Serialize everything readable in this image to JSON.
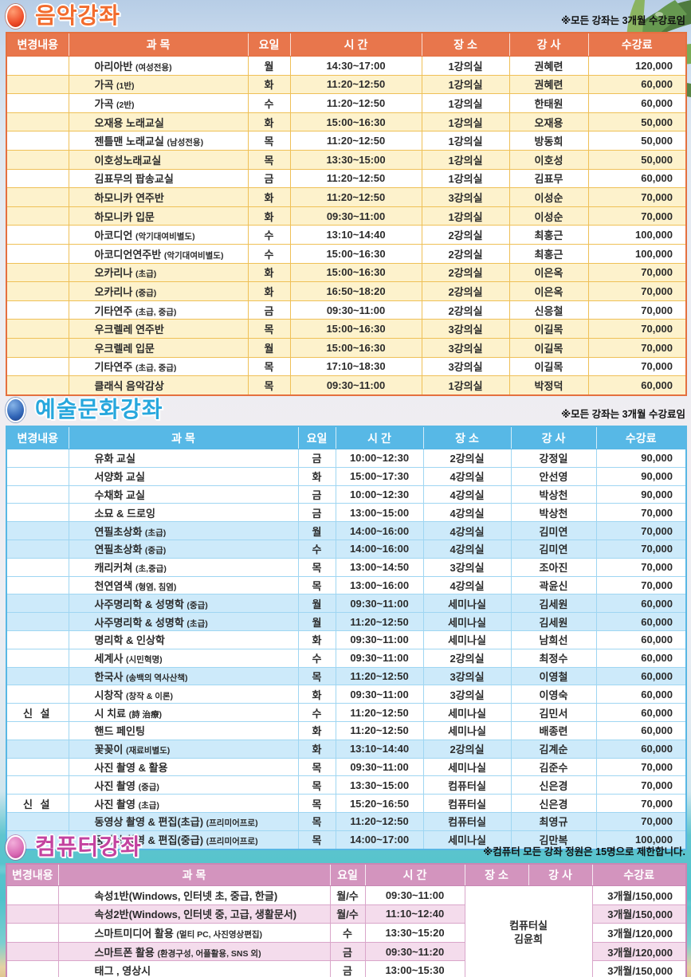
{
  "palette": {
    "music_accent": "#f26b2d",
    "music_header": "#e8764c",
    "music_stripe": "#fdf2cc",
    "music_grid": "#efc057",
    "art_accent": "#27a7dd",
    "art_header": "#57b8e6",
    "art_stripe": "#cdeafa",
    "comp_accent": "#c3429f",
    "comp_header": "#d394be",
    "comp_stripe": "#f4dcec",
    "new_label_red": "#e53126",
    "sea_teal": "#4fc2cb",
    "sand": "#e6d2a3"
  },
  "sections": [
    {
      "id": "music",
      "title": "음악강좌",
      "note": "※모든 강좌는 3개월 수강료임",
      "columns": [
        "변경내용",
        "과 목",
        "요일",
        "시 간",
        "장 소",
        "강 사",
        "수강료"
      ],
      "rows": [
        {
          "change": "",
          "subject": "아리아반",
          "subject_note": "(여성전용)",
          "day": "월",
          "time": "14:30~17:00",
          "place": "1강의실",
          "teacher": "권혜련",
          "fee": "120,000",
          "shade": false
        },
        {
          "change": "",
          "subject": "가곡",
          "subject_note": "(1반)",
          "day": "화",
          "time": "11:20~12:50",
          "place": "1강의실",
          "teacher": "권혜련",
          "fee": "60,000",
          "shade": true
        },
        {
          "change": "",
          "subject": "가곡",
          "subject_note": "(2반)",
          "day": "수",
          "time": "11:20~12:50",
          "place": "1강의실",
          "teacher": "한태원",
          "fee": "60,000",
          "shade": false
        },
        {
          "change": "",
          "subject": "오재용 노래교실",
          "subject_note": "",
          "day": "화",
          "time": "15:00~16:30",
          "place": "1강의실",
          "teacher": "오재용",
          "fee": "50,000",
          "shade": true
        },
        {
          "change": "",
          "subject": "젠틀맨 노래교실",
          "subject_note": "(남성전용)",
          "day": "목",
          "time": "11:20~12:50",
          "place": "1강의실",
          "teacher": "방동희",
          "fee": "50,000",
          "shade": false
        },
        {
          "change": "",
          "subject": "이호성노래교실",
          "subject_note": "",
          "day": "목",
          "time": "13:30~15:00",
          "place": "1강의실",
          "teacher": "이호성",
          "fee": "50,000",
          "shade": true
        },
        {
          "change": "",
          "subject": "김표무의 팝송교실",
          "subject_note": "",
          "day": "금",
          "time": "11:20~12:50",
          "place": "1강의실",
          "teacher": "김표무",
          "fee": "60,000",
          "shade": false
        },
        {
          "change": "",
          "subject": "하모니카 연주반",
          "subject_note": "",
          "day": "화",
          "time": "11:20~12:50",
          "place": "3강의실",
          "teacher": "이성순",
          "fee": "70,000",
          "shade": true
        },
        {
          "change": "",
          "subject": "하모니카 입문",
          "subject_note": "",
          "day": "화",
          "time": "09:30~11:00",
          "place": "1강의실",
          "teacher": "이성순",
          "fee": "70,000",
          "shade": true
        },
        {
          "change": "",
          "subject": "아코디언",
          "subject_note": "(악기대여비별도)",
          "day": "수",
          "time": "13:10~14:40",
          "place": "2강의실",
          "teacher": "최홍근",
          "fee": "100,000",
          "shade": false
        },
        {
          "change": "",
          "subject": "아코디언연주반",
          "subject_note": "(악기대여비별도)",
          "day": "수",
          "time": "15:00~16:30",
          "place": "2강의실",
          "teacher": "최홍근",
          "fee": "100,000",
          "shade": false
        },
        {
          "change": "",
          "subject": "오카리나",
          "subject_note": "(초급)",
          "day": "화",
          "time": "15:00~16:30",
          "place": "2강의실",
          "teacher": "이은옥",
          "fee": "70,000",
          "shade": true
        },
        {
          "change": "",
          "subject": "오카리나",
          "subject_note": "(중급)",
          "day": "화",
          "time": "16:50~18:20",
          "place": "2강의실",
          "teacher": "이은옥",
          "fee": "70,000",
          "shade": true
        },
        {
          "change": "",
          "subject": "기타연주",
          "subject_note": "(초급, 중급)",
          "day": "금",
          "time": "09:30~11:00",
          "place": "2강의실",
          "teacher": "신응철",
          "fee": "70,000",
          "shade": false
        },
        {
          "change": "",
          "subject": "우크렐레 연주반",
          "subject_note": "",
          "day": "목",
          "time": "15:00~16:30",
          "place": "3강의실",
          "teacher": "이길목",
          "fee": "70,000",
          "shade": true
        },
        {
          "change": "",
          "subject": "우크렐레 입문",
          "subject_note": "",
          "day": "월",
          "time": "15:00~16:30",
          "place": "3강의실",
          "teacher": "이길목",
          "fee": "70,000",
          "shade": true
        },
        {
          "change": "",
          "subject": "기타연주",
          "subject_note": "(초급, 중급)",
          "day": "목",
          "time": "17:10~18:30",
          "place": "3강의실",
          "teacher": "이길목",
          "fee": "70,000",
          "shade": false
        },
        {
          "change": "",
          "subject": "클래식 음악감상",
          "subject_note": "",
          "day": "목",
          "time": "09:30~11:00",
          "place": "1강의실",
          "teacher": "박정덕",
          "fee": "60,000",
          "shade": true
        }
      ]
    },
    {
      "id": "art",
      "title": "예술문화강좌",
      "note": "※모든 강좌는 3개월 수강료임",
      "columns": [
        "변경내용",
        "과 목",
        "요일",
        "시 간",
        "장 소",
        "강 사",
        "수강료"
      ],
      "rows": [
        {
          "change": "",
          "subject": "유화 교실",
          "subject_note": "",
          "day": "금",
          "time": "10:00~12:30",
          "place": "2강의실",
          "teacher": "강정일",
          "fee": "90,000",
          "shade": false
        },
        {
          "change": "",
          "subject": "서양화 교실",
          "subject_note": "",
          "day": "화",
          "time": "15:00~17:30",
          "place": "4강의실",
          "teacher": "안선영",
          "fee": "90,000",
          "shade": false
        },
        {
          "change": "",
          "subject": "수채화 교실",
          "subject_note": "",
          "day": "금",
          "time": "10:00~12:30",
          "place": "4강의실",
          "teacher": "박상천",
          "fee": "90,000",
          "shade": false
        },
        {
          "change": "",
          "subject": "소묘 & 드로잉",
          "subject_note": "",
          "day": "금",
          "time": "13:00~15:00",
          "place": "4강의실",
          "teacher": "박상천",
          "fee": "70,000",
          "shade": false
        },
        {
          "change": "",
          "subject": "연필초상화",
          "subject_note": "(초급)",
          "day": "월",
          "time": "14:00~16:00",
          "place": "4강의실",
          "teacher": "김미연",
          "fee": "70,000",
          "shade": true
        },
        {
          "change": "",
          "subject": "연필초상화",
          "subject_note": "(중급)",
          "day": "수",
          "time": "14:00~16:00",
          "place": "4강의실",
          "teacher": "김미연",
          "fee": "70,000",
          "shade": true
        },
        {
          "change": "",
          "subject": "캐리커쳐",
          "subject_note": "(초,중급)",
          "day": "목",
          "time": "13:00~14:50",
          "place": "3강의실",
          "teacher": "조아진",
          "fee": "70,000",
          "shade": false
        },
        {
          "change": "",
          "subject": "천연염색",
          "subject_note": "(형염, 침염)",
          "day": "목",
          "time": "13:00~16:00",
          "place": "4강의실",
          "teacher": "곽윤신",
          "fee": "70,000",
          "shade": false
        },
        {
          "change": "",
          "subject": "사주명리학 & 성명학",
          "subject_note": "(중급)",
          "day": "월",
          "time": "09:30~11:00",
          "place": "세미나실",
          "teacher": "김세원",
          "fee": "60,000",
          "shade": true
        },
        {
          "change": "",
          "subject": "사주명리학 & 성명학",
          "subject_note": "(초급)",
          "day": "월",
          "time": "11:20~12:50",
          "place": "세미나실",
          "teacher": "김세원",
          "fee": "60,000",
          "shade": true
        },
        {
          "change": "",
          "subject": "명리학 & 인상학",
          "subject_note": "",
          "day": "화",
          "time": "09:30~11:00",
          "place": "세미나실",
          "teacher": "남희선",
          "fee": "60,000",
          "shade": false
        },
        {
          "change": "",
          "subject": "세계사",
          "subject_note": "(시민혁명)",
          "day": "수",
          "time": "09:30~11:00",
          "place": "2강의실",
          "teacher": "최정수",
          "fee": "60,000",
          "shade": false
        },
        {
          "change": "",
          "subject": "한국사",
          "subject_note": "(송백의 역사산책)",
          "day": "목",
          "time": "11:20~12:50",
          "place": "3강의실",
          "teacher": "이영철",
          "fee": "60,000",
          "shade": true
        },
        {
          "change": "",
          "subject": "시창작",
          "subject_note": "(창작 & 이론)",
          "day": "화",
          "time": "09:30~11:00",
          "place": "3강의실",
          "teacher": "이영숙",
          "fee": "60,000",
          "shade": false
        },
        {
          "change": "신 설",
          "subject": "시 치료",
          "subject_note": "(詩 治療)",
          "day": "수",
          "time": "11:20~12:50",
          "place": "세미나실",
          "teacher": "김민서",
          "fee": "60,000",
          "shade": false
        },
        {
          "change": "",
          "subject": "핸드 페인팅",
          "subject_note": "",
          "day": "화",
          "time": "11:20~12:50",
          "place": "세미나실",
          "teacher": "배종련",
          "fee": "60,000",
          "shade": false
        },
        {
          "change": "",
          "subject": "꽃꽂이",
          "subject_note": "(재료비별도)",
          "day": "화",
          "time": "13:10~14:40",
          "place": "2강의실",
          "teacher": "김계순",
          "fee": "60,000",
          "shade": true
        },
        {
          "change": "",
          "subject": "사진 촬영 & 활용",
          "subject_note": "",
          "day": "목",
          "time": "09:30~11:00",
          "place": "세미나실",
          "teacher": "김준수",
          "fee": "70,000",
          "shade": false
        },
        {
          "change": "",
          "subject": "사진 촬영",
          "subject_note": "(중급)",
          "day": "목",
          "time": "13:30~15:00",
          "place": "컴퓨터실",
          "teacher": "신은경",
          "fee": "70,000",
          "shade": false
        },
        {
          "change": "신 설",
          "subject": "사진 촬영",
          "subject_note": "(초급)",
          "day": "목",
          "time": "15:20~16:50",
          "place": "컴퓨터실",
          "teacher": "신은경",
          "fee": "70,000",
          "shade": false
        },
        {
          "change": "",
          "subject": "동영상 촬영 & 편집(초급)",
          "subject_note": "(프리미어프로)",
          "day": "목",
          "time": "11:20~12:50",
          "place": "컴퓨터실",
          "teacher": "최영규",
          "fee": "70,000",
          "shade": true
        },
        {
          "change": "",
          "subject": "동영상 촬영 & 편집(중급)",
          "subject_note": "(프리미어프로)",
          "day": "목",
          "time": "14:00~17:00",
          "place": "세미나실",
          "teacher": "김만복",
          "fee": "100,000",
          "shade": true
        }
      ]
    },
    {
      "id": "computer",
      "title": "컴퓨터강좌",
      "note": "※컴퓨터 모든 강좌 정원은 15명으로 제한합니다.",
      "columns": [
        "변경내용",
        "과 목",
        "요일",
        "시 간",
        "장 소",
        "강 사",
        "수강료"
      ],
      "merged_place_teacher": [
        "컴퓨터실",
        "김윤희"
      ],
      "rows": [
        {
          "change": "",
          "subject": "속성1반(Windows, 인터넷 초, 중급, 한글)",
          "subject_note": "",
          "day": "월/수",
          "time": "09:30~11:00",
          "fee": "3개월/150,000",
          "shade": false
        },
        {
          "change": "",
          "subject": "속성2반(Windows, 인터넷 중, 고급, 생활문서)",
          "subject_note": "",
          "day": "월/수",
          "time": "11:10~12:40",
          "fee": "3개월/150,000",
          "shade": true
        },
        {
          "change": "",
          "subject": "스마트미디어 활용",
          "subject_note": "(멀티 PC, 사진영상편집)",
          "day": "수",
          "time": "13:30~15:20",
          "fee": "3개월/120,000",
          "shade": false
        },
        {
          "change": "",
          "subject": "스마트폰 활용",
          "subject_note": "(환경구성, 어플활용, SNS 외)",
          "day": "금",
          "time": "09:30~11:20",
          "fee": "3개월/120,000",
          "shade": true
        },
        {
          "change": "",
          "subject": "태그 , 영상시",
          "subject_note": "",
          "day": "금",
          "time": "13:00~15:30",
          "fee": "3개월/150,000",
          "shade": false
        }
      ]
    }
  ]
}
